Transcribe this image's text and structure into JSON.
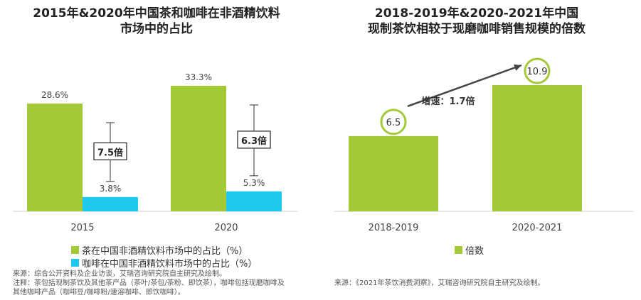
{
  "left": {
    "title_line1": "2015年&2020年中国茶和咖啡在非酒精饮料",
    "title_line2": "市场中的占比",
    "chart_data": {
      "type": "bar",
      "categories": [
        "2015",
        "2020"
      ],
      "series": [
        {
          "name": "茶在中国非酒精饮料市场中的占比（%）",
          "values": [
            28.6,
            33.3
          ],
          "labels": [
            "28.6%",
            "33.3%"
          ],
          "color": "#a3c936"
        },
        {
          "name": "咖啡在中国非酒精饮料市场中的占比（%）",
          "values": [
            3.8,
            5.3
          ],
          "labels": [
            "3.8%",
            "5.3%"
          ],
          "color": "#1ec8ee"
        }
      ],
      "ylim": [
        0,
        36
      ],
      "annotations": [
        "7.5倍",
        "6.3倍"
      ]
    },
    "source": "来源：综合公开资料及企业访谈，艾瑞咨询研究院自主研究及绘制。",
    "note_line1": "注释：茶包括现制茶饮及其他茶产品（茶叶/茶包/茶粉、即饮茶），咖啡包括现磨咖啡及",
    "note_line2": "其他咖啡产品（咖啡豆/咖啡粉/速溶咖啡、即饮咖啡）。"
  },
  "right": {
    "title_line1": "2018-2019年&2020-2021年中国",
    "title_line2": "现制茶饮相较于现磨咖啡销售规模的倍数",
    "chart_data": {
      "type": "bar",
      "categories": [
        "2018-2019",
        "2020-2021"
      ],
      "series": [
        {
          "name": "倍数",
          "values": [
            6.5,
            10.9
          ],
          "labels": [
            "6.5",
            "10.9"
          ],
          "color": "#a3c936"
        }
      ],
      "ylim": [
        0,
        12
      ],
      "annotation": "增速：1.7倍"
    },
    "source": "来源：《2021年茶饮消费洞察》，艾瑞咨询研究院自主研究及绘制。"
  }
}
